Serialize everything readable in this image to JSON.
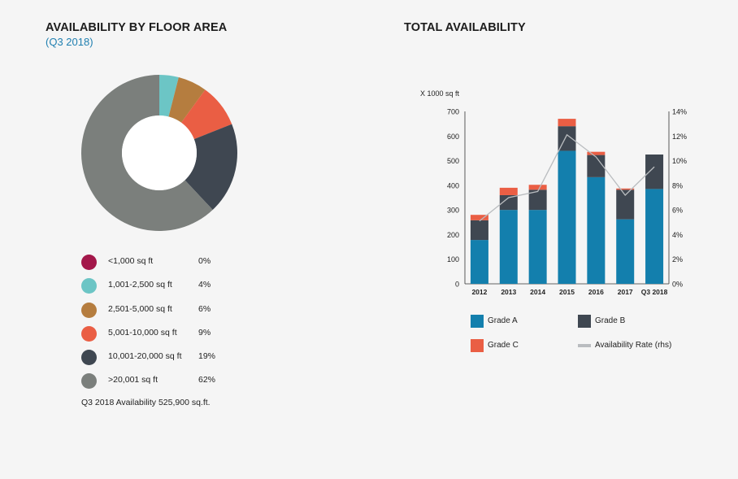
{
  "left_panel": {
    "title": "AVAILABILITY BY FLOOR AREA",
    "subtitle": "(Q3 2018)",
    "note": "Q3 2018 Availability 525,900 sq.ft."
  },
  "right_panel": {
    "title": "TOTAL AVAILABILITY"
  },
  "chart_data": [
    {
      "type": "pie",
      "donut": true,
      "labels": [
        "<1,000 sq ft",
        "1,001-2,500 sq ft",
        "2,501-5,000 sq ft",
        "5,001-10,000 sq ft",
        "10,001-20,000 sq ft",
        ">20,001 sq ft"
      ],
      "values": [
        0,
        4,
        6,
        9,
        19,
        62
      ],
      "value_labels": [
        "0%",
        "4%",
        "6%",
        "9%",
        "19%",
        "62%"
      ],
      "colors": [
        "#a3174a",
        "#6cc5c5",
        "#b57d3f",
        "#ea5e44",
        "#3f4751",
        "#7b7f7c"
      ]
    },
    {
      "type": "bar",
      "stacked": true,
      "categories": [
        "2012",
        "2013",
        "2014",
        "2015",
        "2016",
        "2017",
        "Q3 2018"
      ],
      "series": [
        {
          "name": "Grade A",
          "color": "#137fad",
          "values": [
            178,
            300,
            300,
            540,
            433,
            262,
            385
          ]
        },
        {
          "name": "Grade B",
          "color": "#3f4751",
          "values": [
            80,
            60,
            82,
            100,
            90,
            120,
            140
          ]
        },
        {
          "name": "Grade C",
          "color": "#ea5e44",
          "values": [
            22,
            30,
            20,
            30,
            13,
            5,
            0
          ]
        }
      ],
      "line": {
        "name": "Availability Rate (rhs)",
        "color": "#b9bcbf",
        "values": [
          5.1,
          7.0,
          7.5,
          12.1,
          10.3,
          7.2,
          9.5
        ]
      },
      "ylabel": "X 1000 sq ft",
      "ylim": [
        0,
        700
      ],
      "y_ticks": [
        "0",
        "100",
        "200",
        "300",
        "400",
        "500",
        "600",
        "700"
      ],
      "y2lim": [
        0,
        14
      ],
      "y2_ticks": [
        "0%",
        "2%",
        "4%",
        "6%",
        "8%",
        "10%",
        "12%",
        "14%"
      ],
      "legend_labels": [
        "Grade A",
        "Grade B",
        "Grade C",
        "Availability Rate (rhs)"
      ],
      "legend_position": "bottom"
    }
  ]
}
